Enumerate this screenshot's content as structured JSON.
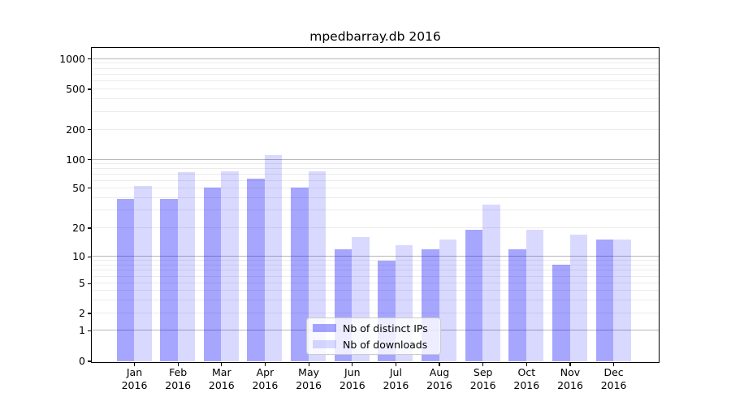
{
  "chart_data": {
    "type": "bar",
    "title": "mpedbarray.db 2016",
    "categories": [
      "Jan",
      "Feb",
      "Mar",
      "Apr",
      "May",
      "Jun",
      "Jul",
      "Aug",
      "Sep",
      "Oct",
      "Nov",
      "Dec"
    ],
    "category_year": "2016",
    "series": [
      {
        "name": "Nb of distinct IPs",
        "color": "rgba(0,0,255,0.35)",
        "values": [
          39,
          39,
          50,
          63,
          50,
          12,
          9,
          12,
          19,
          12,
          8,
          15
        ]
      },
      {
        "name": "Nb of downloads",
        "color": "rgba(0,0,255,0.15)",
        "values": [
          52,
          73,
          75,
          110,
          74,
          16,
          13,
          15,
          34,
          19,
          17,
          15
        ]
      }
    ],
    "yscale": "symlog",
    "yticks": [
      0,
      1,
      2,
      5,
      10,
      20,
      50,
      100,
      200,
      500,
      1000
    ],
    "minor_grid_values": [
      2,
      3,
      4,
      5,
      6,
      7,
      8,
      9,
      20,
      30,
      40,
      50,
      60,
      70,
      80,
      90,
      200,
      300,
      400,
      500,
      600,
      700,
      800,
      900
    ],
    "major_grid_values": [
      1,
      10,
      100,
      1000
    ],
    "ylim": [
      0,
      1280
    ],
    "xlabel": "",
    "ylabel": "",
    "grid": "horizontal major+minor",
    "legend_position": "inside lower-center"
  }
}
